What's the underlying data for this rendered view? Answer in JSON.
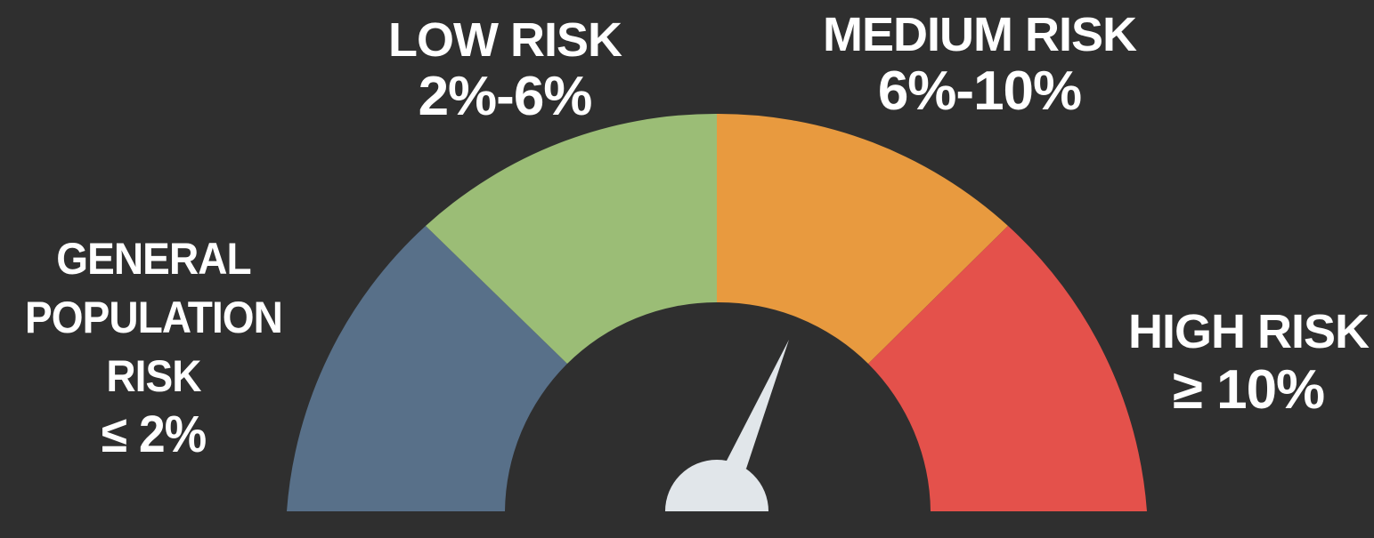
{
  "colors": {
    "background": "#2f2f2f",
    "general_population": "#587089",
    "low": "#9bbd76",
    "medium": "#e89a3f",
    "high": "#e4514b",
    "needle": "#e1e6ea",
    "text": "#ffffff"
  },
  "segments": [
    {
      "id": "general",
      "name_lines": [
        "GENERAL",
        "POPULATION",
        "RISK"
      ],
      "range": "≤ 2%"
    },
    {
      "id": "low",
      "name_lines": [
        "LOW RISK"
      ],
      "range": "2%-6%"
    },
    {
      "id": "medium",
      "name_lines": [
        "MEDIUM RISK"
      ],
      "range": "6%-10%"
    },
    {
      "id": "high",
      "name_lines": [
        "HIGH RISK"
      ],
      "range": "≥ 10%"
    }
  ],
  "needle": {
    "pointing_segment": "medium",
    "angle_from_left_degrees": 110
  }
}
